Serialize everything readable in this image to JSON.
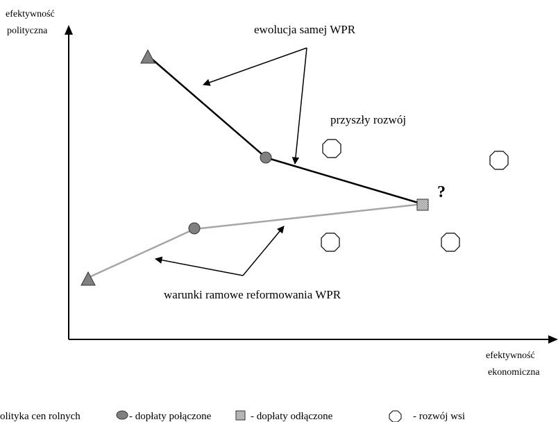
{
  "axes": {
    "y_label_line1": "efektywność",
    "y_label_line2": "polityczna",
    "x_label_line1": "efektywność",
    "x_label_line2": "ekonomiczna"
  },
  "annotations": {
    "evolution": "ewolucja samej WPR",
    "future": "przyszły rozwój",
    "framework": "warunki ramowe reformowania WPR",
    "question": "?"
  },
  "legend": {
    "price_policy": "olityka cen rolnych",
    "coupled": "- dopłaty połączone",
    "decoupled": "- dopłaty odłączone",
    "rural": "- rozwój wsi"
  },
  "colors": {
    "upper_path": "#000000",
    "lower_path": "#a6a6a6",
    "marker_fill": "#808080",
    "decoupled_fill": "#c8c8c8",
    "rural_fill": "#ffffff"
  },
  "icons": {
    "price_policy": "triangle-icon",
    "coupled": "circle-icon",
    "decoupled": "checkered-square-icon",
    "rural": "octagon-icon"
  }
}
